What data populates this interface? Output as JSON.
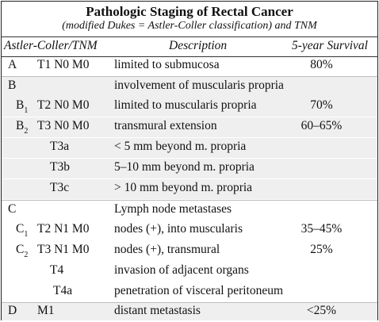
{
  "title": "Pathologic Staging of Rectal Cancer",
  "subtitle": "(modified Dukes = Astler-Coller classification) and TNM",
  "headers": {
    "staging": "Astler-Coller/TNM",
    "description": "Description",
    "survival": "5-year Survival"
  },
  "rows": [
    {
      "stage": "A",
      "sub": "",
      "tnm": "T1 N0 M0",
      "desc": "limited to submucosa",
      "survival": "80%"
    },
    {
      "stage": "B",
      "sub": "",
      "tnm": "",
      "desc": "involvement of muscularis propria",
      "survival": ""
    },
    {
      "stage": "B",
      "sub": "1",
      "tnm": "T2 N0 M0",
      "desc": "limited to muscularis propria",
      "survival": "70%"
    },
    {
      "stage": "B",
      "sub": "2",
      "tnm": "T3 N0 M0",
      "desc": "transmural extension",
      "survival": "60–65%"
    },
    {
      "stage": "",
      "sub": "",
      "tnm": "T3a",
      "desc": "< 5 mm beyond m. propria",
      "survival": ""
    },
    {
      "stage": "",
      "sub": "",
      "tnm": "T3b",
      "desc": "5–10 mm beyond m. propria",
      "survival": ""
    },
    {
      "stage": "",
      "sub": "",
      "tnm": "T3c",
      "desc": "> 10 mm beyond m. propria",
      "survival": ""
    },
    {
      "stage": "C",
      "sub": "",
      "tnm": "",
      "desc": "Lymph node metastases",
      "survival": ""
    },
    {
      "stage": "C",
      "sub": "1",
      "tnm": "T2 N1 M0",
      "desc": "nodes (+), into muscularis",
      "survival": "35–45%"
    },
    {
      "stage": "C",
      "sub": "2",
      "tnm": "T3 N1 M0",
      "desc": "nodes (+), transmural",
      "survival": "25%"
    },
    {
      "stage": "",
      "sub": "",
      "tnm": "T4",
      "desc": "invasion of adjacent organs",
      "survival": ""
    },
    {
      "stage": "",
      "sub": "",
      "tnm": "T4a",
      "desc": "penetration of visceral peritoneum",
      "survival": ""
    },
    {
      "stage": "D",
      "sub": "",
      "tnm": "M1",
      "desc": "distant metastasis",
      "survival": "<25%"
    }
  ]
}
